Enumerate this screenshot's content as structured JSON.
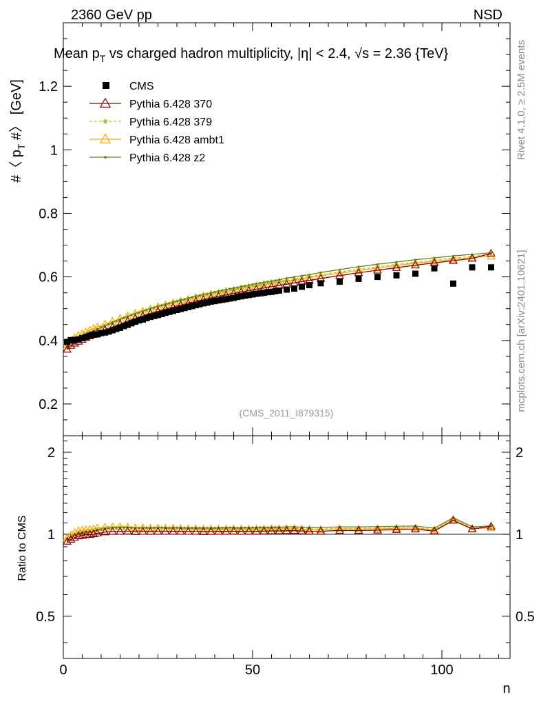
{
  "header": {
    "left": "2360 GeV pp",
    "right": "NSD"
  },
  "side_labels": {
    "rivet": "Rivet 4.1.0, ≥ 2.5M events",
    "mcplots": "mcplots.cern.ch [arXiv:2401.10621]"
  },
  "chart_data": {
    "type": "scatter",
    "title": "Mean p_T vs charged hadron multiplicity, |η| < 2.4, √s = 2.36 {TeV}",
    "title_parts": {
      "mean_p": "Mean p",
      "sub_t": "T",
      "rest": " vs charged hadron multiplicity, ",
      "eta": "|η| < 2.4, √s = 2.36 {TeV}"
    },
    "watermark": "(CMS_2011_I879315)",
    "xlabel": "n",
    "ylabel": "#〈 p_T #〉 [GeV]",
    "ylabel_parts": {
      "pre": "#〈 p",
      "sub": "T",
      "post": " #〉 [GeV]"
    },
    "xlim": [
      0,
      118
    ],
    "ylim": [
      0.1,
      1.4
    ],
    "x_ticks": [
      0,
      50,
      100
    ],
    "x_tick_labels": [
      "0",
      "50",
      "100"
    ],
    "y_ticks": [
      0.2,
      0.4,
      0.6,
      0.8,
      1,
      1.2
    ],
    "y_tick_labels": [
      "0.2",
      "0.4",
      "0.6",
      "0.8",
      "1",
      "1.2"
    ],
    "ratio": {
      "ylabel": "Ratio to CMS",
      "ylim": [
        0.35,
        2.3
      ],
      "y_ticks": [
        0.5,
        1,
        2
      ],
      "y_tick_labels": [
        "0.5",
        "1",
        "2"
      ]
    },
    "series": [
      {
        "name": "CMS",
        "color": "#000000",
        "marker": "square",
        "x": [
          1,
          2,
          3,
          4,
          5,
          6,
          7,
          8,
          9,
          10,
          11,
          12,
          13,
          14,
          15,
          16,
          17,
          18,
          19,
          20,
          21,
          22,
          23,
          24,
          25,
          26,
          27,
          28,
          29,
          30,
          31,
          32,
          33,
          34,
          35,
          36,
          37,
          38,
          39,
          40,
          41,
          42,
          43,
          44,
          45,
          46,
          47,
          48,
          49,
          50,
          51,
          52,
          53,
          54,
          55,
          56,
          57,
          59,
          61,
          63,
          65,
          68,
          73,
          78,
          83,
          88,
          93,
          98,
          103,
          108,
          113
        ],
        "values": [
          0.395,
          0.401,
          0.402,
          0.403,
          0.407,
          0.411,
          0.415,
          0.418,
          0.419,
          0.423,
          0.425,
          0.428,
          0.432,
          0.436,
          0.44,
          0.445,
          0.449,
          0.454,
          0.459,
          0.463,
          0.466,
          0.47,
          0.474,
          0.477,
          0.48,
          0.483,
          0.487,
          0.49,
          0.493,
          0.496,
          0.499,
          0.502,
          0.505,
          0.508,
          0.511,
          0.514,
          0.517,
          0.519,
          0.522,
          0.524,
          0.526,
          0.528,
          0.53,
          0.532,
          0.534,
          0.537,
          0.539,
          0.541,
          0.543,
          0.545,
          0.547,
          0.548,
          0.55,
          0.552,
          0.553,
          0.555,
          0.557,
          0.56,
          0.563,
          0.569,
          0.574,
          0.58,
          0.585,
          0.594,
          0.6,
          0.605,
          0.61,
          0.627,
          0.579,
          0.63,
          0.63
        ]
      },
      {
        "name": "Pythia 6.428 370",
        "color": "#8b0000",
        "marker": "open-triangle",
        "x": [
          1,
          2,
          3,
          4,
          5,
          6,
          7,
          8,
          9,
          10,
          11,
          12,
          13,
          14,
          15,
          16,
          17,
          18,
          19,
          20,
          21,
          22,
          23,
          24,
          25,
          26,
          27,
          28,
          29,
          30,
          31,
          32,
          33,
          34,
          35,
          36,
          37,
          38,
          39,
          40,
          41,
          42,
          43,
          44,
          45,
          46,
          47,
          48,
          49,
          50,
          51,
          52,
          53,
          54,
          55,
          56,
          57,
          59,
          61,
          63,
          65,
          68,
          73,
          78,
          83,
          88,
          93,
          98,
          103,
          108,
          113
        ],
        "values": [
          0.372,
          0.384,
          0.391,
          0.397,
          0.403,
          0.409,
          0.414,
          0.419,
          0.423,
          0.428,
          0.433,
          0.437,
          0.442,
          0.447,
          0.451,
          0.456,
          0.461,
          0.465,
          0.469,
          0.473,
          0.477,
          0.481,
          0.485,
          0.488,
          0.492,
          0.495,
          0.499,
          0.502,
          0.505,
          0.508,
          0.511,
          0.514,
          0.517,
          0.52,
          0.523,
          0.526,
          0.528,
          0.531,
          0.534,
          0.536,
          0.539,
          0.541,
          0.543,
          0.546,
          0.548,
          0.55,
          0.552,
          0.554,
          0.557,
          0.559,
          0.561,
          0.563,
          0.565,
          0.567,
          0.569,
          0.571,
          0.573,
          0.577,
          0.581,
          0.585,
          0.589,
          0.595,
          0.604,
          0.613,
          0.621,
          0.629,
          0.637,
          0.644,
          0.651,
          0.658,
          0.674
        ]
      },
      {
        "name": "Pythia 6.428 379",
        "color": "#9acd32",
        "marker": "star",
        "dashed": true,
        "x": [
          1,
          2,
          3,
          4,
          5,
          6,
          7,
          8,
          9,
          10,
          11,
          12,
          13,
          14,
          15,
          16,
          17,
          18,
          19,
          20,
          21,
          22,
          23,
          24,
          25,
          26,
          27,
          28,
          29,
          30,
          31,
          32,
          33,
          34,
          35,
          36,
          37,
          38,
          39,
          40,
          41,
          42,
          43,
          44,
          45,
          46,
          47,
          48,
          49,
          50,
          51,
          52,
          53,
          54,
          55,
          56,
          57,
          59,
          61,
          63,
          65,
          68,
          73,
          78,
          83,
          88,
          93,
          98,
          103,
          108,
          113
        ],
        "values": [
          0.38,
          0.393,
          0.401,
          0.408,
          0.414,
          0.42,
          0.426,
          0.431,
          0.436,
          0.441,
          0.446,
          0.451,
          0.456,
          0.461,
          0.466,
          0.471,
          0.476,
          0.48,
          0.484,
          0.488,
          0.492,
          0.496,
          0.5,
          0.503,
          0.507,
          0.51,
          0.513,
          0.516,
          0.52,
          0.523,
          0.526,
          0.528,
          0.531,
          0.534,
          0.537,
          0.54,
          0.542,
          0.545,
          0.547,
          0.55,
          0.552,
          0.554,
          0.557,
          0.559,
          0.561,
          0.563,
          0.566,
          0.568,
          0.57,
          0.572,
          0.574,
          0.576,
          0.578,
          0.58,
          0.582,
          0.584,
          0.586,
          0.59,
          0.594,
          0.598,
          0.601,
          0.607,
          0.616,
          0.624,
          0.632,
          0.639,
          0.646,
          0.653,
          0.659,
          0.665,
          0.671
        ]
      },
      {
        "name": "Pythia 6.428 ambt1",
        "color": "#ffa500",
        "marker": "open-triangle",
        "x": [
          1,
          2,
          3,
          4,
          5,
          6,
          7,
          8,
          9,
          10,
          11,
          12,
          13,
          14,
          15,
          16,
          17,
          18,
          19,
          20,
          21,
          22,
          23,
          24,
          25,
          26,
          27,
          28,
          29,
          30,
          31,
          32,
          33,
          34,
          35,
          36,
          37,
          38,
          39,
          40,
          41,
          42,
          43,
          44,
          45,
          46,
          47,
          48,
          49,
          50,
          51,
          52,
          53,
          54,
          55,
          56,
          57,
          59,
          61,
          63,
          65,
          68,
          73,
          78,
          83,
          88,
          93,
          98,
          103,
          108,
          113
        ],
        "values": [
          0.382,
          0.398,
          0.408,
          0.415,
          0.421,
          0.427,
          0.432,
          0.437,
          0.442,
          0.447,
          0.451,
          0.456,
          0.46,
          0.464,
          0.469,
          0.473,
          0.477,
          0.481,
          0.485,
          0.489,
          0.492,
          0.496,
          0.499,
          0.503,
          0.506,
          0.509,
          0.512,
          0.515,
          0.518,
          0.521,
          0.524,
          0.527,
          0.529,
          0.532,
          0.535,
          0.537,
          0.54,
          0.542,
          0.545,
          0.547,
          0.549,
          0.552,
          0.554,
          0.556,
          0.558,
          0.561,
          0.563,
          0.565,
          0.567,
          0.569,
          0.571,
          0.573,
          0.575,
          0.577,
          0.579,
          0.581,
          0.583,
          0.587,
          0.59,
          0.594,
          0.598,
          0.603,
          0.612,
          0.62,
          0.628,
          0.636,
          0.643,
          0.649,
          0.655,
          0.661,
          0.665
        ]
      },
      {
        "name": "Pythia 6.428 z2",
        "color": "#6b7d1c",
        "marker": "dot",
        "x": [
          1,
          2,
          3,
          4,
          5,
          6,
          7,
          8,
          9,
          10,
          11,
          12,
          13,
          14,
          15,
          16,
          17,
          18,
          19,
          20,
          21,
          22,
          23,
          24,
          25,
          26,
          27,
          28,
          29,
          30,
          31,
          32,
          33,
          34,
          35,
          36,
          37,
          38,
          39,
          40,
          41,
          42,
          43,
          44,
          45,
          46,
          47,
          48,
          49,
          50,
          51,
          52,
          53,
          54,
          55,
          56,
          57,
          59,
          61,
          63,
          65,
          68,
          73,
          78,
          83,
          88,
          93,
          98,
          103,
          108,
          113
        ],
        "values": [
          0.378,
          0.391,
          0.399,
          0.406,
          0.413,
          0.419,
          0.425,
          0.43,
          0.435,
          0.441,
          0.446,
          0.451,
          0.456,
          0.461,
          0.466,
          0.471,
          0.475,
          0.48,
          0.484,
          0.488,
          0.492,
          0.496,
          0.5,
          0.504,
          0.507,
          0.511,
          0.514,
          0.517,
          0.521,
          0.524,
          0.527,
          0.53,
          0.533,
          0.536,
          0.539,
          0.542,
          0.545,
          0.547,
          0.55,
          0.553,
          0.555,
          0.558,
          0.56,
          0.563,
          0.565,
          0.567,
          0.57,
          0.572,
          0.574,
          0.577,
          0.579,
          0.581,
          0.583,
          0.585,
          0.587,
          0.589,
          0.591,
          0.596,
          0.6,
          0.604,
          0.607,
          0.614,
          0.623,
          0.632,
          0.64,
          0.647,
          0.654,
          0.66,
          0.666,
          0.671,
          0.676
        ]
      }
    ]
  }
}
